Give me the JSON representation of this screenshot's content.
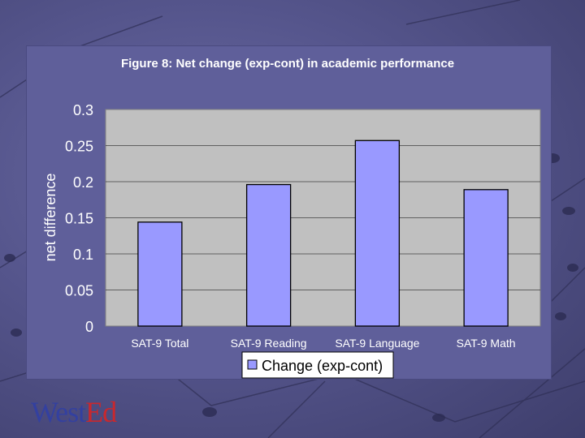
{
  "chart_data": {
    "type": "bar",
    "title": "Figure 8: Net change (exp-cont) in academic performance",
    "xlabel": "",
    "ylabel": "net difference",
    "categories": [
      "SAT-9 Total",
      "SAT-9 Reading",
      "SAT-9 Language",
      "SAT-9 Math"
    ],
    "series": [
      {
        "name": "Change (exp-cont)",
        "values": [
          0.144,
          0.196,
          0.257,
          0.189
        ]
      }
    ],
    "ylim": [
      0,
      0.3
    ],
    "yticks": [
      "0",
      "0.05",
      "0.1",
      "0.15",
      "0.2",
      "0.25",
      "0.3"
    ],
    "grid": true,
    "legend": "bottom",
    "colors": {
      "bar": "#9999ff",
      "plot_bg": "#c0c0c0",
      "text": "#ffffff"
    }
  },
  "logo": {
    "part1": "West",
    "part2": "Ed"
  }
}
